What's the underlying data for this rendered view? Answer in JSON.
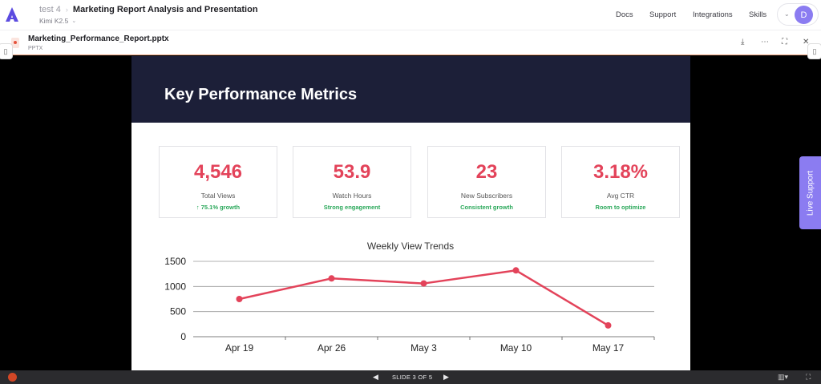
{
  "header": {
    "project": "test 4",
    "title": "Marketing Report Analysis and Presentation",
    "model": "Kimi K2.5",
    "nav": [
      "Docs",
      "Support",
      "Integrations",
      "Skills"
    ],
    "avatar_initial": "D"
  },
  "file_bar": {
    "file_name": "Marketing_Performance_Report.pptx",
    "file_type": "PPTX"
  },
  "slide": {
    "title": "Key Performance Metrics",
    "kpis": [
      {
        "value": "4,546",
        "label": "Total Views",
        "note": "↑ 75.1% growth"
      },
      {
        "value": "53.9",
        "label": "Watch Hours",
        "note": "Strong engagement"
      },
      {
        "value": "23",
        "label": "New Subscribers",
        "note": "Consistent growth"
      },
      {
        "value": "3.18%",
        "label": "Avg CTR",
        "note": "Room to optimize"
      }
    ]
  },
  "chart_data": {
    "type": "line",
    "title": "Weekly View Trends",
    "categories": [
      "Apr 19",
      "Apr 26",
      "May 3",
      "May 10",
      "May 17"
    ],
    "series": [
      {
        "values": [
          750,
          1160,
          1060,
          1320,
          225
        ]
      }
    ],
    "ylim": [
      0,
      1500
    ],
    "yticks": [
      "0",
      "500",
      "1000",
      "1500"
    ],
    "grid": true,
    "color": "#e3435a"
  },
  "bottom_bar": {
    "slide_indicator": "SLIDE 3 OF 5"
  },
  "live_support": "Live Support",
  "colors": {
    "accent": "#8b7cf1",
    "kpi_value": "#e3435a",
    "kpi_note": "#2aa85a",
    "slide_header": "#1c1f38"
  }
}
